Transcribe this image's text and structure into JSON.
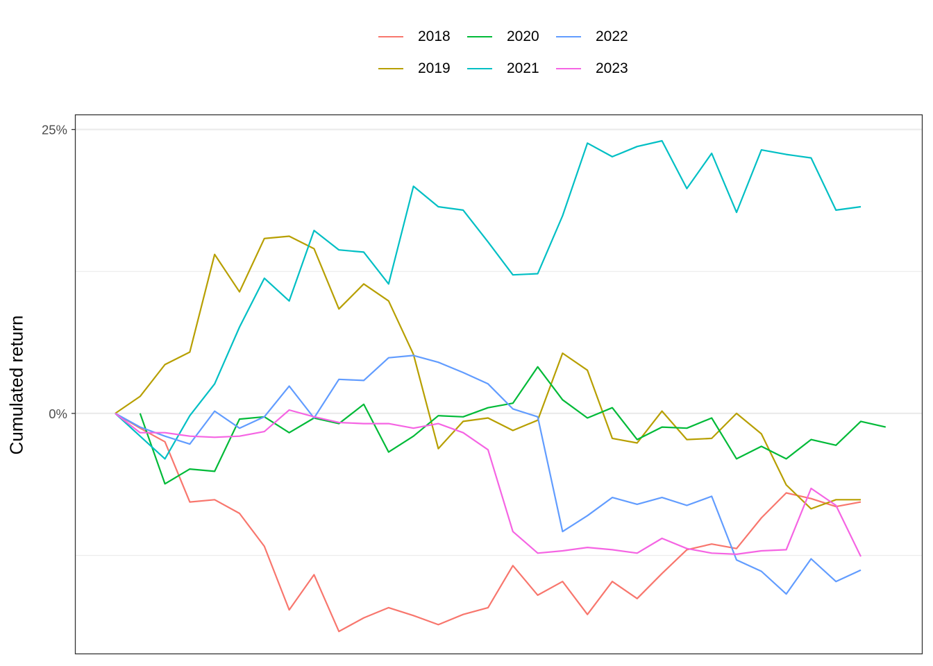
{
  "chart_data": {
    "type": "line",
    "title": "",
    "xlabel": "",
    "ylabel": "Cumulated return",
    "y_ticks": [
      {
        "value": 0.25,
        "label": "25%"
      },
      {
        "value": 0.0,
        "label": "0%"
      }
    ],
    "y_minor_gridlines": [
      0.125,
      -0.125
    ],
    "ylim": [
      -0.2114,
      0.2626
    ],
    "x_tick_labels": [],
    "grid": true,
    "legend_position": "top",
    "series": [
      {
        "name": "2018",
        "color": "#F8766D",
        "start": 0,
        "values": [
          0.0,
          -0.013,
          -0.025,
          -0.078,
          -0.076,
          -0.088,
          -0.117,
          -0.173,
          -0.142,
          -0.192,
          -0.18,
          -0.171,
          -0.178,
          -0.186,
          -0.177,
          -0.171,
          -0.134,
          -0.16,
          -0.148,
          -0.177,
          -0.148,
          -0.163,
          -0.141,
          -0.12,
          -0.115,
          -0.119,
          -0.092,
          -0.07,
          -0.075,
          -0.082,
          -0.078
        ]
      },
      {
        "name": "2019",
        "color": "#B79F00",
        "start": 0,
        "values": [
          0.0,
          0.015,
          0.043,
          0.054,
          0.14,
          0.107,
          0.154,
          0.156,
          0.145,
          0.092,
          0.114,
          0.099,
          0.052,
          -0.031,
          -0.007,
          -0.004,
          -0.015,
          -0.006,
          0.053,
          0.038,
          -0.022,
          -0.026,
          0.002,
          -0.023,
          -0.022,
          0.0,
          -0.018,
          -0.063,
          -0.084,
          -0.076,
          -0.076
        ]
      },
      {
        "name": "2020",
        "color": "#00BA38",
        "start": 1,
        "values": [
          0.0,
          -0.062,
          -0.049,
          -0.051,
          -0.005,
          -0.003,
          -0.017,
          -0.004,
          -0.009,
          0.008,
          -0.034,
          -0.02,
          -0.002,
          -0.003,
          0.005,
          0.009,
          0.041,
          0.012,
          -0.004,
          0.005,
          -0.023,
          -0.012,
          -0.013,
          -0.004,
          -0.04,
          -0.029,
          -0.04,
          -0.023,
          -0.028,
          -0.007,
          -0.012
        ]
      },
      {
        "name": "2021",
        "color": "#00BFC4",
        "start": 0,
        "values": [
          0.0,
          -0.02,
          -0.04,
          -0.002,
          0.026,
          0.076,
          0.119,
          0.099,
          0.161,
          0.144,
          0.142,
          0.114,
          0.2,
          0.182,
          0.179,
          0.151,
          0.122,
          0.123,
          0.174,
          0.238,
          0.226,
          0.235,
          0.24,
          0.198,
          0.229,
          0.177,
          0.232,
          0.228,
          0.225,
          0.179,
          0.182
        ]
      },
      {
        "name": "2022",
        "color": "#619CFF",
        "start": 0,
        "values": [
          0.0,
          -0.012,
          -0.02,
          -0.027,
          0.002,
          -0.013,
          -0.003,
          0.024,
          -0.004,
          0.03,
          0.029,
          0.049,
          0.051,
          0.045,
          0.036,
          0.026,
          0.004,
          -0.003,
          -0.104,
          -0.09,
          -0.074,
          -0.08,
          -0.074,
          -0.081,
          -0.073,
          -0.129,
          -0.139,
          -0.159,
          -0.128,
          -0.148,
          -0.138
        ]
      },
      {
        "name": "2023",
        "color": "#F564E3",
        "start": 0,
        "values": [
          0.0,
          -0.017,
          -0.017,
          -0.02,
          -0.021,
          -0.02,
          -0.016,
          0.003,
          -0.003,
          -0.008,
          -0.009,
          -0.009,
          -0.013,
          -0.009,
          -0.017,
          -0.032,
          -0.104,
          -0.123,
          -0.121,
          -0.118,
          -0.12,
          -0.123,
          -0.11,
          -0.119,
          -0.123,
          -0.124,
          -0.121,
          -0.12,
          -0.066,
          -0.081,
          -0.126
        ]
      }
    ]
  }
}
